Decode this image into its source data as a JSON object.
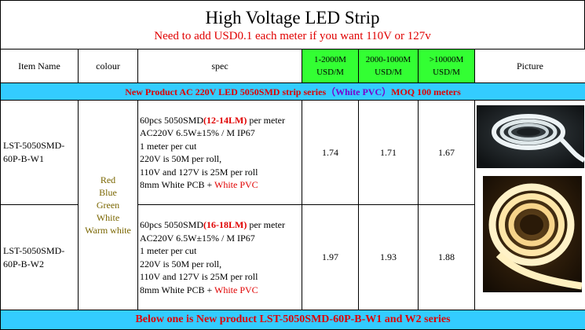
{
  "header": {
    "title": "High Voltage LED Strip",
    "subtitle": "Need to add USD0.1 each meter if you want 110V or 127v"
  },
  "columns": {
    "item_name": "Item Name",
    "colour": "colour",
    "spec": "spec",
    "price1_range": "1-2000M",
    "price1_unit": "USD/M",
    "price2_range": "2000-1000M",
    "price2_unit": "USD/M",
    "price3_range": ">10000M",
    "price3_unit": "USD/M",
    "picture": "Picture"
  },
  "band": {
    "prefix": "New Product  AC 220V LED 5050SMD strip series",
    "accent": "（White PVC）",
    "suffix": "MOQ 100 meters"
  },
  "colours": [
    "Red",
    "Blue",
    "Green",
    "White",
    "Warm white"
  ],
  "rows": [
    {
      "item_line1": "LST-5050SMD-",
      "item_line2": "60P-B-W1",
      "spec_a": "60pcs  5050SMD",
      "spec_lm": "(12-14LM)",
      "spec_b": " per meter",
      "spec_2": "AC220V  6.5W±15% / M    IP67",
      "spec_3": "1 meter per cut",
      "spec_4": "220V is 50M per roll,",
      "spec_5": "110V and 127V is 25M per roll",
      "spec_6a": "8mm White PCB + ",
      "spec_6b": "White PVC",
      "price1": "1.74",
      "price2": "1.71",
      "price3": "1.67"
    },
    {
      "item_line1": "LST-5050SMD-",
      "item_line2": "60P-B-W2",
      "spec_a": "60pcs  5050SMD",
      "spec_lm": "(16-18LM)",
      "spec_b": " per meter",
      "spec_2": "AC220V  6.5W±15% / M    IP67",
      "spec_3": "1 meter per cut",
      "spec_4": "220V is 50M per roll,",
      "spec_5": "110V and 127V is 25M per roll",
      "spec_6a": "8mm White PCB + ",
      "spec_6b": "White PVC",
      "price1": "1.97",
      "price2": "1.93",
      "price3": "1.88"
    }
  ],
  "footer": {
    "text": "Below one is New product  LST-5050SMD-60P-B-W1 and W2 series"
  }
}
